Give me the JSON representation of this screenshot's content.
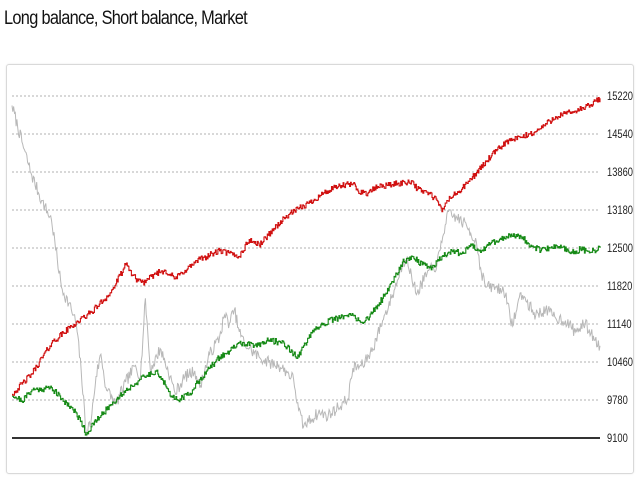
{
  "page": {
    "title": "Long balance, Short balance, Market"
  },
  "chart_data": {
    "type": "line",
    "title": "Long balance, Short balance, Market",
    "xlabel": "",
    "ylabel": "",
    "ylim": [
      9100,
      15220
    ],
    "yticks": [
      15220,
      14540,
      13860,
      13180,
      12500,
      11820,
      11140,
      10460,
      9780,
      9100
    ],
    "grid": true,
    "legend": "none",
    "x_points": 120,
    "series": [
      {
        "key": "long",
        "color": "#d01010",
        "anchors": [
          [
            0,
            9880
          ],
          [
            4,
            10250
          ],
          [
            8,
            10800
          ],
          [
            12,
            11100
          ],
          [
            16,
            11350
          ],
          [
            20,
            11700
          ],
          [
            23,
            12200
          ],
          [
            25,
            11950
          ],
          [
            27,
            11880
          ],
          [
            29,
            12050
          ],
          [
            31,
            12100
          ],
          [
            33,
            11950
          ],
          [
            35,
            12100
          ],
          [
            38,
            12300
          ],
          [
            42,
            12450
          ],
          [
            46,
            12350
          ],
          [
            48,
            12650
          ],
          [
            50,
            12550
          ],
          [
            53,
            12850
          ],
          [
            56,
            13100
          ],
          [
            58,
            13200
          ],
          [
            60,
            13300
          ],
          [
            63,
            13480
          ],
          [
            66,
            13600
          ],
          [
            69,
            13650
          ],
          [
            70,
            13520
          ],
          [
            72,
            13480
          ],
          [
            74,
            13600
          ],
          [
            78,
            13650
          ],
          [
            81,
            13700
          ],
          [
            82,
            13550
          ],
          [
            84,
            13500
          ],
          [
            86,
            13350
          ],
          [
            87,
            13150
          ],
          [
            88,
            13350
          ],
          [
            91,
            13550
          ],
          [
            94,
            13850
          ],
          [
            97,
            14150
          ],
          [
            100,
            14400
          ],
          [
            103,
            14480
          ],
          [
            106,
            14580
          ],
          [
            110,
            14850
          ],
          [
            114,
            14950
          ],
          [
            117,
            15050
          ],
          [
            119,
            15180
          ]
        ]
      },
      {
        "key": "short",
        "color": "#168a16",
        "anchors": [
          [
            0,
            9880
          ],
          [
            2,
            9760
          ],
          [
            4,
            9960
          ],
          [
            8,
            10000
          ],
          [
            10,
            9800
          ],
          [
            12,
            9650
          ],
          [
            14,
            9400
          ],
          [
            15,
            9160
          ],
          [
            16,
            9300
          ],
          [
            18,
            9500
          ],
          [
            20,
            9700
          ],
          [
            23,
            9950
          ],
          [
            26,
            10150
          ],
          [
            29,
            10300
          ],
          [
            30,
            10200
          ],
          [
            31,
            10050
          ],
          [
            32,
            9850
          ],
          [
            34,
            9800
          ],
          [
            36,
            9900
          ],
          [
            38,
            10150
          ],
          [
            40,
            10350
          ],
          [
            42,
            10550
          ],
          [
            44,
            10650
          ],
          [
            46,
            10800
          ],
          [
            49,
            10750
          ],
          [
            52,
            10850
          ],
          [
            55,
            10800
          ],
          [
            57,
            10600
          ],
          [
            58,
            10550
          ],
          [
            59,
            10750
          ],
          [
            61,
            11000
          ],
          [
            63,
            11150
          ],
          [
            66,
            11250
          ],
          [
            69,
            11300
          ],
          [
            71,
            11150
          ],
          [
            73,
            11350
          ],
          [
            75,
            11600
          ],
          [
            77,
            11900
          ],
          [
            79,
            12250
          ],
          [
            81,
            12350
          ],
          [
            83,
            12200
          ],
          [
            85,
            12150
          ],
          [
            87,
            12350
          ],
          [
            89,
            12450
          ],
          [
            91,
            12400
          ],
          [
            93,
            12550
          ],
          [
            95,
            12450
          ],
          [
            97,
            12600
          ],
          [
            99,
            12650
          ],
          [
            101,
            12750
          ],
          [
            103,
            12700
          ],
          [
            105,
            12550
          ],
          [
            107,
            12450
          ],
          [
            109,
            12500
          ],
          [
            111,
            12550
          ],
          [
            113,
            12400
          ],
          [
            115,
            12480
          ],
          [
            117,
            12420
          ],
          [
            119,
            12500
          ]
        ]
      },
      {
        "key": "market",
        "color": "#b8b8b8",
        "anchors": [
          [
            0,
            15050
          ],
          [
            2,
            14400
          ],
          [
            4,
            13800
          ],
          [
            6,
            13350
          ],
          [
            8,
            13000
          ],
          [
            10,
            11800
          ],
          [
            12,
            11400
          ],
          [
            13,
            11150
          ],
          [
            14,
            10300
          ],
          [
            15,
            9200
          ],
          [
            16,
            9400
          ],
          [
            17,
            10200
          ],
          [
            18,
            10600
          ],
          [
            19,
            10000
          ],
          [
            21,
            9700
          ],
          [
            23,
            10100
          ],
          [
            25,
            10400
          ],
          [
            26,
            10200
          ],
          [
            27,
            11600
          ],
          [
            28,
            10300
          ],
          [
            30,
            10700
          ],
          [
            32,
            10200
          ],
          [
            33,
            9900
          ],
          [
            35,
            10200
          ],
          [
            37,
            10300
          ],
          [
            38,
            10000
          ],
          [
            40,
            10600
          ],
          [
            42,
            10900
          ],
          [
            43,
            11300
          ],
          [
            44,
            11150
          ],
          [
            45,
            11400
          ],
          [
            46,
            11000
          ],
          [
            47,
            10800
          ],
          [
            48,
            10700
          ],
          [
            50,
            10550
          ],
          [
            52,
            10450
          ],
          [
            54,
            10400
          ],
          [
            56,
            10250
          ],
          [
            57,
            10150
          ],
          [
            58,
            9600
          ],
          [
            59,
            9300
          ],
          [
            60,
            9400
          ],
          [
            62,
            9550
          ],
          [
            64,
            9500
          ],
          [
            66,
            9650
          ],
          [
            68,
            9800
          ],
          [
            69,
            10350
          ],
          [
            71,
            10400
          ],
          [
            73,
            10700
          ],
          [
            75,
            11200
          ],
          [
            77,
            11650
          ],
          [
            79,
            12200
          ],
          [
            80,
            12350
          ],
          [
            81,
            11900
          ],
          [
            82,
            11700
          ],
          [
            84,
            12050
          ],
          [
            86,
            12200
          ],
          [
            87,
            12600
          ],
          [
            88,
            13100
          ],
          [
            90,
            13050
          ],
          [
            92,
            12900
          ],
          [
            94,
            12600
          ],
          [
            95,
            12050
          ],
          [
            96,
            11800
          ],
          [
            98,
            11800
          ],
          [
            100,
            11700
          ],
          [
            101,
            11100
          ],
          [
            102,
            11350
          ],
          [
            103,
            11700
          ],
          [
            104,
            11550
          ],
          [
            106,
            11300
          ],
          [
            108,
            11400
          ],
          [
            110,
            11250
          ],
          [
            112,
            11200
          ],
          [
            114,
            11000
          ],
          [
            116,
            11150
          ],
          [
            118,
            10850
          ],
          [
            119,
            10750
          ]
        ]
      }
    ]
  }
}
